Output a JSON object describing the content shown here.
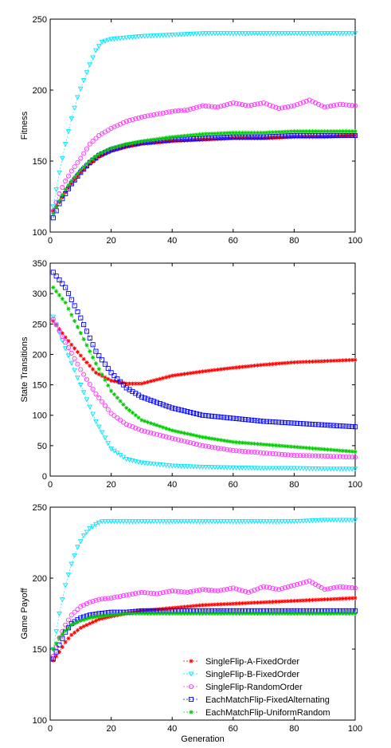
{
  "chart_data": [
    {
      "type": "scatter",
      "xlabel": "",
      "ylabel": "Fitness",
      "xlim": [
        0,
        100
      ],
      "ylim": [
        100,
        250
      ],
      "xticks": [
        0,
        20,
        40,
        60,
        80,
        100
      ],
      "yticks": [
        100,
        150,
        200,
        250
      ],
      "series": [
        {
          "name": "SingleFlip-A-FixedOrder",
          "color": "#ff0000",
          "marker": "star",
          "x": [
            1,
            3,
            5,
            7,
            10,
            13,
            16,
            20,
            25,
            30,
            40,
            50,
            60,
            70,
            80,
            90,
            100
          ],
          "y": [
            115,
            121,
            128,
            134,
            142,
            148,
            153,
            157,
            160,
            162,
            164,
            165,
            166,
            166,
            167,
            167,
            168
          ]
        },
        {
          "name": "SingleFlip-B-FixedOrder",
          "color": "#00e5ff",
          "marker": "triangle",
          "x": [
            1,
            3,
            5,
            7,
            9,
            11,
            13,
            15,
            17,
            20,
            25,
            30,
            40,
            50,
            60,
            70,
            80,
            90,
            100
          ],
          "y": [
            118,
            142,
            162,
            180,
            195,
            207,
            218,
            228,
            234,
            236,
            237,
            238,
            239,
            240,
            240,
            240,
            240,
            240,
            240
          ]
        },
        {
          "name": "SingleFlip-RandomOrder",
          "color": "#ff33ff",
          "marker": "circle",
          "x": [
            1,
            3,
            5,
            7,
            10,
            13,
            16,
            20,
            25,
            30,
            35,
            40,
            45,
            50,
            55,
            60,
            65,
            70,
            75,
            80,
            85,
            90,
            95,
            100
          ],
          "y": [
            115,
            127,
            136,
            143,
            152,
            162,
            168,
            173,
            178,
            181,
            183,
            185,
            186,
            189,
            188,
            191,
            189,
            191,
            187,
            189,
            193,
            188,
            190,
            189
          ]
        },
        {
          "name": "EachMatchFlip-FixedAlternating",
          "color": "#0000ff",
          "marker": "square",
          "x": [
            1,
            3,
            5,
            7,
            10,
            13,
            16,
            20,
            25,
            30,
            40,
            50,
            60,
            70,
            80,
            90,
            100
          ],
          "y": [
            110,
            120,
            127,
            134,
            142,
            149,
            154,
            158,
            161,
            163,
            165,
            166,
            167,
            167,
            168,
            168,
            168
          ]
        },
        {
          "name": "EachMatchFlip-UniformRandom",
          "color": "#00cc00",
          "marker": "star",
          "x": [
            1,
            3,
            5,
            7,
            10,
            13,
            16,
            20,
            25,
            30,
            40,
            50,
            60,
            70,
            80,
            90,
            100
          ],
          "y": [
            113,
            122,
            130,
            136,
            144,
            150,
            155,
            159,
            162,
            164,
            167,
            169,
            170,
            170,
            171,
            171,
            171
          ]
        }
      ]
    },
    {
      "type": "scatter",
      "xlabel": "",
      "ylabel": "State Transitions",
      "xlim": [
        0,
        100
      ],
      "ylim": [
        0,
        350
      ],
      "xticks": [
        0,
        20,
        40,
        60,
        80,
        100
      ],
      "yticks": [
        0,
        50,
        100,
        150,
        200,
        250,
        300,
        350
      ],
      "series": [
        {
          "name": "SingleFlip-A-FixedOrder",
          "color": "#ff0000",
          "marker": "star",
          "x": [
            1,
            5,
            10,
            15,
            20,
            25,
            30,
            40,
            50,
            60,
            70,
            80,
            90,
            100
          ],
          "y": [
            255,
            228,
            198,
            170,
            157,
            152,
            152,
            165,
            172,
            178,
            183,
            187,
            189,
            191
          ]
        },
        {
          "name": "SingleFlip-B-FixedOrder",
          "color": "#00e5ff",
          "marker": "triangle",
          "x": [
            1,
            5,
            10,
            15,
            20,
            25,
            30,
            40,
            50,
            60,
            70,
            80,
            90,
            100
          ],
          "y": [
            262,
            210,
            150,
            90,
            45,
            28,
            22,
            17,
            15,
            14,
            13,
            13,
            12,
            12
          ]
        },
        {
          "name": "SingleFlip-RandomOrder",
          "color": "#ff33ff",
          "marker": "circle",
          "x": [
            1,
            5,
            10,
            15,
            20,
            25,
            30,
            40,
            50,
            60,
            70,
            80,
            90,
            100
          ],
          "y": [
            258,
            220,
            175,
            135,
            103,
            85,
            75,
            62,
            50,
            42,
            38,
            34,
            33,
            31
          ]
        },
        {
          "name": "EachMatchFlip-FixedAlternating",
          "color": "#0000ff",
          "marker": "square",
          "x": [
            1,
            5,
            10,
            15,
            20,
            25,
            30,
            40,
            50,
            60,
            70,
            80,
            90,
            100
          ],
          "y": [
            335,
            310,
            260,
            205,
            170,
            145,
            130,
            112,
            100,
            95,
            90,
            87,
            84,
            81
          ]
        },
        {
          "name": "EachMatchFlip-UniformRandom",
          "color": "#00cc00",
          "marker": "star",
          "x": [
            1,
            5,
            10,
            15,
            20,
            25,
            30,
            40,
            50,
            60,
            70,
            80,
            90,
            100
          ],
          "y": [
            310,
            285,
            235,
            185,
            140,
            112,
            92,
            75,
            64,
            56,
            52,
            48,
            44,
            40
          ]
        }
      ]
    },
    {
      "type": "scatter",
      "xlabel": "Generation",
      "ylabel": "Game Payoff",
      "xlim": [
        0,
        100
      ],
      "ylim": [
        100,
        250
      ],
      "xticks": [
        0,
        20,
        40,
        60,
        80,
        100
      ],
      "yticks": [
        100,
        150,
        200,
        250
      ],
      "legend_position": "bottom-right",
      "series": [
        {
          "name": "SingleFlip-A-FixedOrder",
          "color": "#ff0000",
          "marker": "star",
          "x": [
            1,
            3,
            5,
            7,
            10,
            13,
            16,
            20,
            25,
            30,
            40,
            50,
            60,
            70,
            80,
            90,
            100
          ],
          "y": [
            142,
            148,
            155,
            160,
            165,
            168,
            171,
            173,
            175,
            177,
            179,
            181,
            182,
            183,
            184,
            185,
            186
          ]
        },
        {
          "name": "SingleFlip-B-FixedOrder",
          "color": "#00e5ff",
          "marker": "triangle",
          "x": [
            1,
            3,
            5,
            7,
            9,
            11,
            13,
            15,
            17,
            20,
            25,
            30,
            40,
            50,
            60,
            70,
            80,
            90,
            100
          ],
          "y": [
            150,
            175,
            195,
            210,
            222,
            230,
            235,
            238,
            240,
            240,
            240,
            240,
            240,
            240,
            240,
            240,
            240,
            241,
            241
          ]
        },
        {
          "name": "SingleFlip-RandomOrder",
          "color": "#ff33ff",
          "marker": "circle",
          "x": [
            1,
            3,
            5,
            7,
            10,
            13,
            16,
            20,
            25,
            30,
            35,
            40,
            45,
            50,
            55,
            60,
            65,
            70,
            75,
            80,
            85,
            90,
            95,
            100
          ],
          "y": [
            145,
            158,
            167,
            174,
            180,
            183,
            185,
            186,
            188,
            190,
            189,
            191,
            190,
            192,
            191,
            193,
            190,
            194,
            192,
            195,
            198,
            192,
            194,
            193
          ]
        },
        {
          "name": "EachMatchFlip-FixedAlternating",
          "color": "#0000ff",
          "marker": "square",
          "x": [
            1,
            3,
            5,
            7,
            10,
            13,
            16,
            20,
            25,
            30,
            40,
            50,
            60,
            70,
            80,
            90,
            100
          ],
          "y": [
            143,
            153,
            162,
            168,
            172,
            174,
            175,
            176,
            176,
            177,
            177,
            177,
            177,
            177,
            177,
            177,
            177
          ]
        },
        {
          "name": "EachMatchFlip-UniformRandom",
          "color": "#00cc00",
          "marker": "star",
          "x": [
            1,
            3,
            5,
            7,
            10,
            13,
            16,
            20,
            25,
            30,
            40,
            50,
            60,
            70,
            80,
            90,
            100
          ],
          "y": [
            150,
            158,
            163,
            167,
            170,
            172,
            173,
            174,
            175,
            175,
            175,
            175,
            175,
            175,
            175,
            175,
            175
          ]
        }
      ]
    }
  ]
}
